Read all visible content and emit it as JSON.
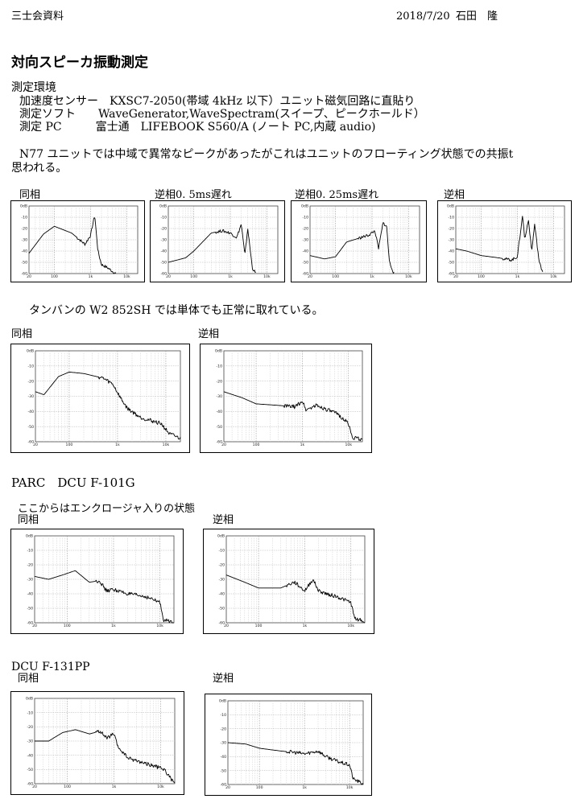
{
  "header": {
    "org": "三士会資料",
    "date": "2018/7/20",
    "author": "石田　隆"
  },
  "title": "対向スピーカ振動測定",
  "env": {
    "heading": "測定環境",
    "lines": [
      "加速度センサー　KXSC7-2050(帯域 4kHz 以下）ユニット磁気回路に直貼り",
      "測定ソフト　　WaveGenerator,WaveSpectram(スイープ、ピークホールド）",
      "測定 PC　　　富士通　LIFEBOOK S560/A (ノート PC,内蔵 audio)"
    ]
  },
  "n77": {
    "note_line1": "N77 ユニットでは中域で異常なピークがあったがこれはユニットのフローティング状態での共振t",
    "note_line2": "思われる。",
    "labels": [
      "同相",
      "逆相0. 5ms遅れ",
      "逆相0. 25ms遅れ",
      "逆相"
    ]
  },
  "w2": {
    "note": "タンバンの W2 852SH では単体でも正常に取れている。",
    "labels": [
      "同相",
      "逆相"
    ]
  },
  "parc101": {
    "heading": "PARC　DCU F-101G",
    "note": "ここからはエンクロージャ入りの状態",
    "labels": [
      "同相",
      "逆相"
    ]
  },
  "dcu131": {
    "heading": "DCU F-131PP",
    "labels": [
      "同相",
      "逆相"
    ]
  },
  "axis": {
    "x_ticks": [
      {
        "f": 20,
        "label": "20"
      },
      {
        "f": 100,
        "label": "100"
      },
      {
        "f": 1000,
        "label": "1k"
      },
      {
        "f": 10000,
        "label": "10k"
      }
    ],
    "y_ticks": [
      "0dB",
      "-10",
      "-20",
      "-30",
      "-40",
      "-50",
      "-60"
    ],
    "line_color": "#000000"
  },
  "chart_data": [
    {
      "type": "line",
      "id": "n77-in-phase",
      "x": [
        20,
        50,
        100,
        300,
        700,
        1000,
        1300,
        1600,
        2000,
        3000,
        4000,
        5000
      ],
      "y": [
        -42,
        -25,
        -18,
        -24,
        -34,
        -26,
        -8,
        -40,
        -52,
        -55,
        -58,
        -60
      ],
      "xlim": [
        20,
        20000
      ],
      "ylim": [
        -60,
        0
      ],
      "xscale": "log"
    },
    {
      "type": "line",
      "id": "n77-reverse-0.5ms",
      "x": [
        20,
        60,
        100,
        300,
        600,
        1000,
        1500,
        2000,
        2500,
        3000,
        4000,
        5000
      ],
      "y": [
        -50,
        -46,
        -40,
        -24,
        -22,
        -24,
        -28,
        -16,
        -44,
        -20,
        -55,
        -60
      ],
      "xlim": [
        20,
        20000
      ],
      "ylim": [
        -60,
        0
      ],
      "xscale": "log"
    },
    {
      "type": "line",
      "id": "n77-reverse-0.25ms",
      "x": [
        20,
        50,
        100,
        200,
        500,
        800,
        1200,
        1500,
        2000,
        2500,
        3000,
        4000
      ],
      "y": [
        -44,
        -47,
        -45,
        -32,
        -28,
        -26,
        -22,
        -38,
        -15,
        -18,
        -50,
        -60
      ],
      "xlim": [
        20,
        20000
      ],
      "ylim": [
        -60,
        0
      ],
      "xscale": "log"
    },
    {
      "type": "line",
      "id": "n77-reverse",
      "x": [
        20,
        40,
        100,
        300,
        700,
        1000,
        1400,
        1600,
        2000,
        2500,
        3000,
        4000,
        5000
      ],
      "y": [
        -38,
        -40,
        -44,
        -46,
        -48,
        -45,
        -8,
        -30,
        -12,
        -40,
        -16,
        -50,
        -58
      ],
      "xlim": [
        20,
        20000
      ],
      "ylim": [
        -60,
        0
      ],
      "xscale": "log"
    },
    {
      "type": "line",
      "id": "w2-in-phase",
      "x": [
        20,
        30,
        60,
        100,
        200,
        500,
        800,
        1200,
        1600,
        3000,
        8000,
        12000,
        15000,
        20000
      ],
      "y": [
        -27,
        -29,
        -17,
        -14,
        -15,
        -18,
        -22,
        -32,
        -38,
        -44,
        -48,
        -55,
        -56,
        -58
      ],
      "xlim": [
        20,
        20000
      ],
      "ylim": [
        -60,
        0
      ],
      "xscale": "log"
    },
    {
      "type": "line",
      "id": "w2-reverse",
      "x": [
        20,
        50,
        100,
        300,
        700,
        1000,
        1200,
        2000,
        3000,
        6000,
        10000,
        12000,
        16000,
        20000
      ],
      "y": [
        -27,
        -31,
        -35,
        -36,
        -37,
        -33,
        -39,
        -36,
        -38,
        -42,
        -48,
        -57,
        -58,
        -59
      ],
      "xlim": [
        20,
        20000
      ],
      "ylim": [
        -60,
        0
      ],
      "xscale": "log"
    },
    {
      "type": "line",
      "id": "parc101-in-phase",
      "x": [
        20,
        40,
        80,
        150,
        300,
        500,
        700,
        1000,
        2000,
        5000,
        10000,
        12000,
        16000,
        20000
      ],
      "y": [
        -28,
        -30,
        -27,
        -24,
        -32,
        -31,
        -38,
        -37,
        -40,
        -42,
        -46,
        -58,
        -59,
        -60
      ],
      "xlim": [
        20,
        20000
      ],
      "ylim": [
        -60,
        0
      ],
      "xscale": "log"
    },
    {
      "type": "line",
      "id": "parc101-reverse",
      "x": [
        20,
        50,
        100,
        300,
        600,
        1000,
        1500,
        2000,
        3000,
        5000,
        10000,
        12000,
        16000,
        20000
      ],
      "y": [
        -27,
        -32,
        -36,
        -36,
        -32,
        -38,
        -30,
        -38,
        -40,
        -42,
        -46,
        -57,
        -58,
        -60
      ],
      "xlim": [
        20,
        20000
      ],
      "ylim": [
        -60,
        0
      ],
      "xscale": "log"
    },
    {
      "type": "line",
      "id": "dcu131-in-phase",
      "x": [
        20,
        40,
        80,
        150,
        300,
        500,
        700,
        1000,
        1200,
        2000,
        4000,
        8000,
        12000,
        16000,
        20000
      ],
      "y": [
        -30,
        -30,
        -24,
        -22,
        -25,
        -23,
        -28,
        -25,
        -34,
        -42,
        -45,
        -48,
        -50,
        -56,
        -60
      ],
      "xlim": [
        20,
        20000
      ],
      "ylim": [
        -60,
        0
      ],
      "xscale": "log"
    },
    {
      "type": "line",
      "id": "dcu131-reverse",
      "x": [
        20,
        50,
        100,
        300,
        600,
        1000,
        2000,
        3000,
        6000,
        10000,
        12000,
        16000,
        20000
      ],
      "y": [
        -30,
        -31,
        -34,
        -36,
        -37,
        -38,
        -36,
        -40,
        -44,
        -46,
        -56,
        -58,
        -60
      ],
      "xlim": [
        20,
        20000
      ],
      "ylim": [
        -60,
        0
      ],
      "xscale": "log"
    }
  ]
}
